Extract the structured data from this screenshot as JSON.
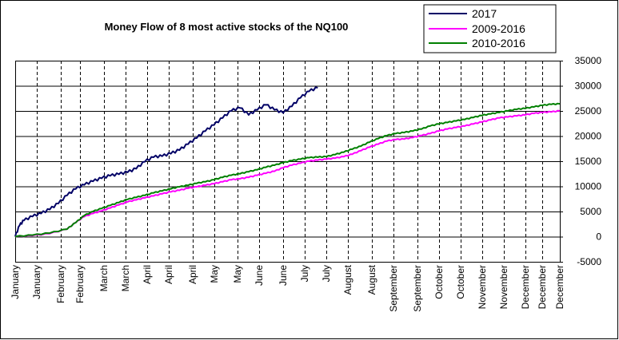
{
  "chart_data": {
    "type": "line",
    "title": "Money Flow of 8 most active stocks of the NQ100",
    "xlabel": "",
    "ylabel": "",
    "ylim": [
      -5000,
      35000
    ],
    "yticks": [
      35000,
      30000,
      25000,
      20000,
      15000,
      10000,
      5000,
      0,
      -5000
    ],
    "ytick_labels": [
      "35000",
      "30000",
      "25000",
      "20000",
      "15000",
      "10000",
      "5000",
      "0",
      "-5000"
    ],
    "xlim": [
      0,
      252
    ],
    "x_tick_positions": [
      0,
      10,
      21,
      30,
      41,
      51,
      61,
      71,
      82,
      92,
      103,
      113,
      124,
      134,
      144,
      154,
      165,
      175,
      186,
      196,
      206,
      216,
      226,
      236,
      244,
      252
    ],
    "x_tick_labels": [
      "January",
      "January",
      "February",
      "February",
      "March",
      "March",
      "April",
      "April",
      "April",
      "May",
      "May",
      "June",
      "June",
      "July",
      "July",
      "August",
      "August",
      "September",
      "September",
      "October",
      "October",
      "November",
      "November",
      "December",
      "December",
      "December"
    ],
    "grid": {
      "horizontal": "solid",
      "vertical": "dashed"
    },
    "legend_position": "top-right",
    "series": [
      {
        "name": "2017",
        "color": "#000066",
        "x": [
          0,
          2,
          4,
          8,
          12,
          16,
          20,
          24,
          28,
          32,
          36,
          40,
          44,
          48,
          52,
          56,
          60,
          64,
          68,
          72,
          76,
          80,
          84,
          88,
          92,
          96,
          100,
          104,
          108,
          112,
          116,
          120,
          124,
          128,
          132,
          136,
          140
        ],
        "y": [
          0,
          2200,
          3200,
          4000,
          4600,
          5400,
          6600,
          8200,
          9500,
          10300,
          11000,
          11600,
          12100,
          12400,
          12800,
          13500,
          14900,
          15800,
          16000,
          16500,
          17200,
          18400,
          19600,
          21000,
          22200,
          23600,
          25000,
          25600,
          24200,
          25200,
          26200,
          25200,
          24600,
          25900,
          27600,
          28900,
          29600
        ]
      },
      {
        "name": "2009-2016",
        "color": "#ff00ff",
        "x": [
          0,
          8,
          16,
          24,
          28,
          32,
          36,
          40,
          44,
          48,
          52,
          56,
          60,
          64,
          68,
          72,
          76,
          80,
          84,
          88,
          92,
          96,
          100,
          104,
          108,
          112,
          116,
          120,
          124,
          128,
          132,
          136,
          140,
          144,
          148,
          152,
          156,
          160,
          164,
          168,
          172,
          176,
          180,
          184,
          188,
          192,
          196,
          200,
          204,
          208,
          212,
          216,
          220,
          224,
          228,
          232,
          236,
          240,
          244,
          248,
          252
        ],
        "y": [
          0,
          200,
          600,
          1500,
          2800,
          4000,
          4600,
          5100,
          5700,
          6300,
          6900,
          7300,
          7700,
          8100,
          8500,
          8900,
          9200,
          9600,
          9900,
          10200,
          10500,
          10900,
          11300,
          11500,
          11800,
          12200,
          12600,
          13000,
          13700,
          14200,
          14600,
          15000,
          15200,
          15400,
          15600,
          15900,
          16400,
          17100,
          17800,
          18400,
          19000,
          19300,
          19400,
          19700,
          20100,
          20500,
          21000,
          21400,
          21700,
          22000,
          22400,
          22800,
          23200,
          23600,
          23800,
          24000,
          24200,
          24500,
          24700,
          24800,
          25000
        ]
      },
      {
        "name": "2010-2016",
        "color": "#008000",
        "x": [
          0,
          8,
          16,
          24,
          28,
          32,
          36,
          40,
          44,
          48,
          52,
          56,
          60,
          64,
          68,
          72,
          76,
          80,
          84,
          88,
          92,
          96,
          100,
          104,
          108,
          112,
          116,
          120,
          124,
          128,
          132,
          136,
          140,
          144,
          148,
          152,
          156,
          160,
          164,
          168,
          172,
          176,
          180,
          184,
          188,
          192,
          196,
          200,
          204,
          208,
          212,
          216,
          220,
          224,
          228,
          232,
          236,
          240,
          244,
          248,
          252
        ],
        "y": [
          0,
          300,
          700,
          1500,
          2800,
          4200,
          5000,
          5600,
          6200,
          6800,
          7400,
          7800,
          8200,
          8700,
          9100,
          9500,
          9900,
          10200,
          10600,
          10900,
          11300,
          11800,
          12200,
          12500,
          12900,
          13300,
          13800,
          14200,
          14700,
          15100,
          15400,
          15700,
          15800,
          15900,
          16300,
          16800,
          17400,
          18000,
          18800,
          19500,
          20100,
          20500,
          20700,
          21000,
          21400,
          22000,
          22400,
          22700,
          23000,
          23300,
          23700,
          24100,
          24400,
          24700,
          25000,
          25300,
          25500,
          25800,
          26100,
          26300,
          26400
        ]
      }
    ]
  }
}
